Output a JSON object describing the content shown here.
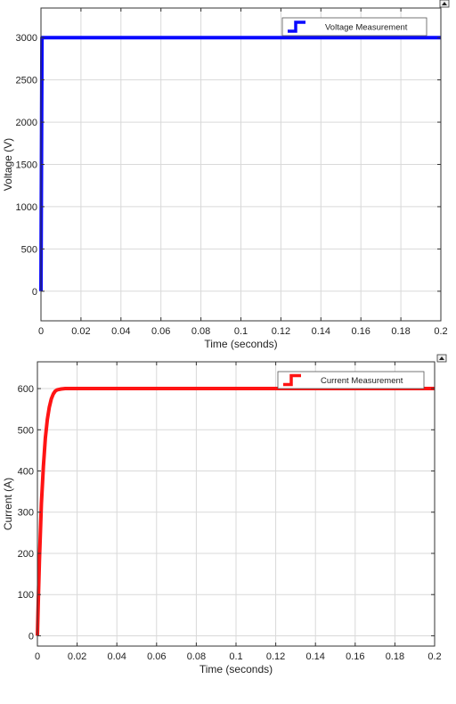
{
  "chart_data": [
    {
      "type": "line",
      "xlabel": "Time (seconds)",
      "ylabel": "Voltage (V)",
      "xlim": [
        0,
        0.2
      ],
      "ylim": [
        -350,
        3350
      ],
      "xticks": [
        0,
        0.02,
        0.04,
        0.06,
        0.08,
        0.1,
        0.12,
        0.14,
        0.16,
        0.18,
        0.2
      ],
      "xtick_labels": [
        "0",
        "0.02",
        "0.04",
        "0.06",
        "0.08",
        "0.1",
        "0.12",
        "0.14",
        "0.16",
        "0.18",
        "0.2"
      ],
      "yticks": [
        0,
        500,
        1000,
        1500,
        2000,
        2500,
        3000
      ],
      "ytick_labels": [
        "0",
        "500",
        "1000",
        "1500",
        "2000",
        "2500",
        "3000"
      ],
      "grid": true,
      "legend_position": "top-right",
      "series": [
        {
          "name": "Voltage Measurement",
          "color": "#0a0aff",
          "x": [
            0,
            0.0005,
            0.2
          ],
          "y": [
            0,
            3000,
            3000
          ]
        }
      ]
    },
    {
      "type": "line",
      "xlabel": "Time (seconds)",
      "ylabel": "Current (A)",
      "xlim": [
        0,
        0.2
      ],
      "ylim": [
        -25,
        665
      ],
      "xticks": [
        0,
        0.02,
        0.04,
        0.06,
        0.08,
        0.1,
        0.12,
        0.14,
        0.16,
        0.18,
        0.2
      ],
      "xtick_labels": [
        "0",
        "0.02",
        "0.04",
        "0.06",
        "0.08",
        "0.1",
        "0.12",
        "0.14",
        "0.16",
        "0.18",
        "0.2"
      ],
      "yticks": [
        0,
        100,
        200,
        300,
        400,
        500,
        600
      ],
      "ytick_labels": [
        "0",
        "100",
        "200",
        "300",
        "400",
        "500",
        "600"
      ],
      "grid": true,
      "legend_position": "top-right",
      "series": [
        {
          "name": "Current Measurement",
          "color": "#ff1414",
          "x": [
            0,
            0.0005,
            0.001,
            0.002,
            0.003,
            0.004,
            0.005,
            0.006,
            0.007,
            0.008,
            0.009,
            0.01,
            0.012,
            0.014,
            0.016,
            0.2
          ],
          "y": [
            0,
            95,
            180,
            320,
            410,
            480,
            525,
            555,
            575,
            587,
            594,
            597,
            599,
            600,
            600,
            600
          ]
        }
      ]
    }
  ]
}
